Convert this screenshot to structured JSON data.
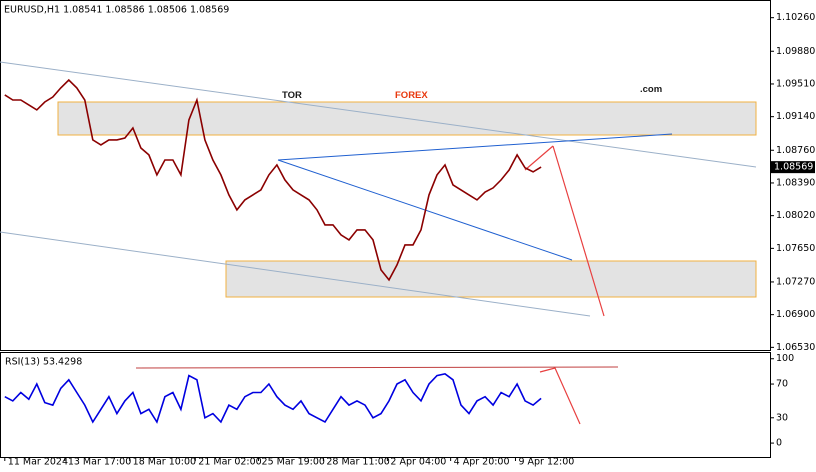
{
  "chart_data": [
    {
      "type": "line",
      "title": "EURUSD,H1 1.08541 1.08586 1.08506 1.08569",
      "logo": [
        "TOR",
        "FOREX",
        ".com"
      ],
      "price_tag": "1.08569",
      "xlim": [
        -0.6,
        95.6
      ],
      "ylim": [
        1.065,
        1.1046
      ],
      "yticks": [
        {
          "value": 1.1026,
          "label": "1.10260"
        },
        {
          "value": 1.0988,
          "label": "1.09880"
        },
        {
          "value": 1.0951,
          "label": "1.09510"
        },
        {
          "value": 1.0914,
          "label": "1.09140"
        },
        {
          "value": 1.0876,
          "label": "1.08760"
        },
        {
          "value": 1.0839,
          "label": "1.08390"
        },
        {
          "value": 1.0802,
          "label": "1.08020"
        },
        {
          "value": 1.0765,
          "label": "1.07650"
        },
        {
          "value": 1.0727,
          "label": "1.07270"
        },
        {
          "value": 1.069,
          "label": "1.06900"
        },
        {
          "value": 1.0653,
          "label": "1.06530"
        }
      ],
      "series": [
        {
          "name": "EURUSD",
          "color": "#8b0000",
          "values": [
            1.09386,
            1.09329,
            1.09329,
            1.09273,
            1.09216,
            1.09306,
            1.09363,
            1.09465,
            1.09555,
            1.09465,
            1.09329,
            1.08877,
            1.0882,
            1.08877,
            1.08877,
            1.08899,
            1.09012,
            1.08786,
            1.08707,
            1.08481,
            1.0865,
            1.0865,
            1.08481,
            1.09103,
            1.09329,
            1.08877,
            1.0865,
            1.08481,
            1.08255,
            1.08085,
            1.08198,
            1.08255,
            1.08311,
            1.08481,
            1.08594,
            1.08424,
            1.08311,
            1.08255,
            1.08198,
            1.08085,
            1.07915,
            1.07915,
            1.07802,
            1.07746,
            1.07859,
            1.07859,
            1.07746,
            1.07406,
            1.07293,
            1.07463,
            1.07689,
            1.07689,
            1.07859,
            1.08255,
            1.08481,
            1.08594,
            1.08368,
            1.08311,
            1.08255,
            1.08198,
            1.08288,
            1.08334,
            1.08424,
            1.08537,
            1.08707,
            1.0856,
            1.08515,
            1.08569
          ]
        }
      ]
    },
    {
      "type": "line",
      "title": "RSI(13) 53.4298",
      "xlim": [
        -0.6,
        95.6
      ],
      "ylim": [
        -16.5,
        108
      ],
      "yticks": [
        100,
        70,
        30,
        0
      ],
      "xticks": [
        {
          "value": 0,
          "label": "11 Mar 2024"
        },
        {
          "value": 7.5,
          "label": "13 Mar 17:00"
        },
        {
          "value": 15.6,
          "label": "18 Mar 10:00"
        },
        {
          "value": 23.8,
          "label": "21 Mar 02:00"
        },
        {
          "value": 31.7,
          "label": "25 Mar 19:00"
        },
        {
          "value": 39.8,
          "label": "28 Mar 11:00"
        },
        {
          "value": 47.8,
          "label": "2 Apr 04:00"
        },
        {
          "value": 55.7,
          "label": "4 Apr 20:00"
        },
        {
          "value": 63.8,
          "label": "9 Apr 12:00"
        }
      ],
      "series": [
        {
          "name": "RSI",
          "color": "#0000e0",
          "values": [
            55,
            50,
            60,
            52,
            70,
            48,
            45,
            65,
            75,
            60,
            45,
            25,
            40,
            55,
            35,
            50,
            60,
            35,
            40,
            25,
            55,
            60,
            40,
            80,
            75,
            30,
            35,
            25,
            45,
            40,
            55,
            60,
            60,
            70,
            55,
            45,
            40,
            50,
            35,
            30,
            25,
            40,
            55,
            45,
            50,
            45,
            30,
            35,
            50,
            70,
            75,
            60,
            50,
            70,
            80,
            82,
            75,
            45,
            35,
            50,
            55,
            45,
            60,
            55,
            70,
            50,
            45,
            53
          ]
        }
      ]
    }
  ]
}
